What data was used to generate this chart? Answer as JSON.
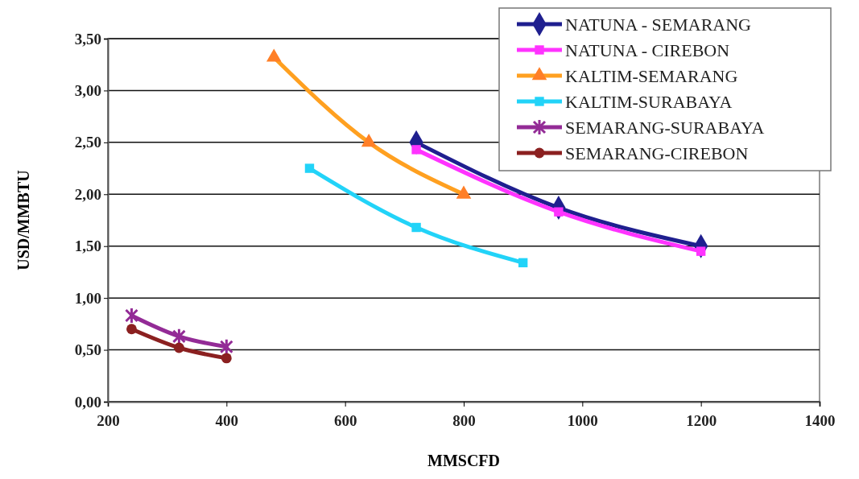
{
  "chart_data": {
    "type": "line",
    "xlabel": "MMSCFD",
    "ylabel": "USD/MMBTU",
    "xlim": [
      200,
      1400
    ],
    "xticks": [
      200,
      400,
      600,
      800,
      1000,
      1200,
      1400
    ],
    "ylim": [
      0,
      3.5
    ],
    "yticks": [
      {
        "value": 0,
        "label": "0,00"
      },
      {
        "value": 0.5,
        "label": "0,50"
      },
      {
        "value": 1,
        "label": "1,00"
      },
      {
        "value": 1.5,
        "label": "1,50"
      },
      {
        "value": 2,
        "label": "2,00"
      },
      {
        "value": 2.5,
        "label": "2,50"
      },
      {
        "value": 3,
        "label": "3,00"
      },
      {
        "value": 3.5,
        "label": "3,50"
      }
    ],
    "grid": "y",
    "legend": "top right",
    "series": [
      {
        "name": "NATUNA - SEMARANG",
        "color": "#1f1f8f",
        "marker": "diamond",
        "x": [
          720,
          960,
          1200
        ],
        "values": [
          2.5,
          1.87,
          1.5
        ]
      },
      {
        "name": "NATUNA - CIREBON",
        "color": "#ff33ff",
        "marker": "square",
        "x": [
          720,
          960,
          1200
        ],
        "values": [
          2.43,
          1.83,
          1.45
        ]
      },
      {
        "name": "KALTIM-SEMARANG",
        "color": "#ffa020",
        "marker": "triangle",
        "x": [
          480,
          640,
          800
        ],
        "values": [
          3.32,
          2.5,
          2.0
        ]
      },
      {
        "name": "KALTIM-SURABAYA",
        "color": "#22d3f8",
        "marker": "square",
        "x": [
          540,
          720,
          900
        ],
        "values": [
          2.25,
          1.68,
          1.34
        ]
      },
      {
        "name": "SEMARANG-SURABAYA",
        "color": "#932b96",
        "marker": "cross",
        "x": [
          240,
          320,
          400
        ],
        "values": [
          0.83,
          0.63,
          0.53
        ]
      },
      {
        "name": "SEMARANG-CIREBON",
        "color": "#8b2020",
        "marker": "circle",
        "x": [
          240,
          320,
          400
        ],
        "values": [
          0.7,
          0.52,
          0.42
        ]
      }
    ]
  }
}
